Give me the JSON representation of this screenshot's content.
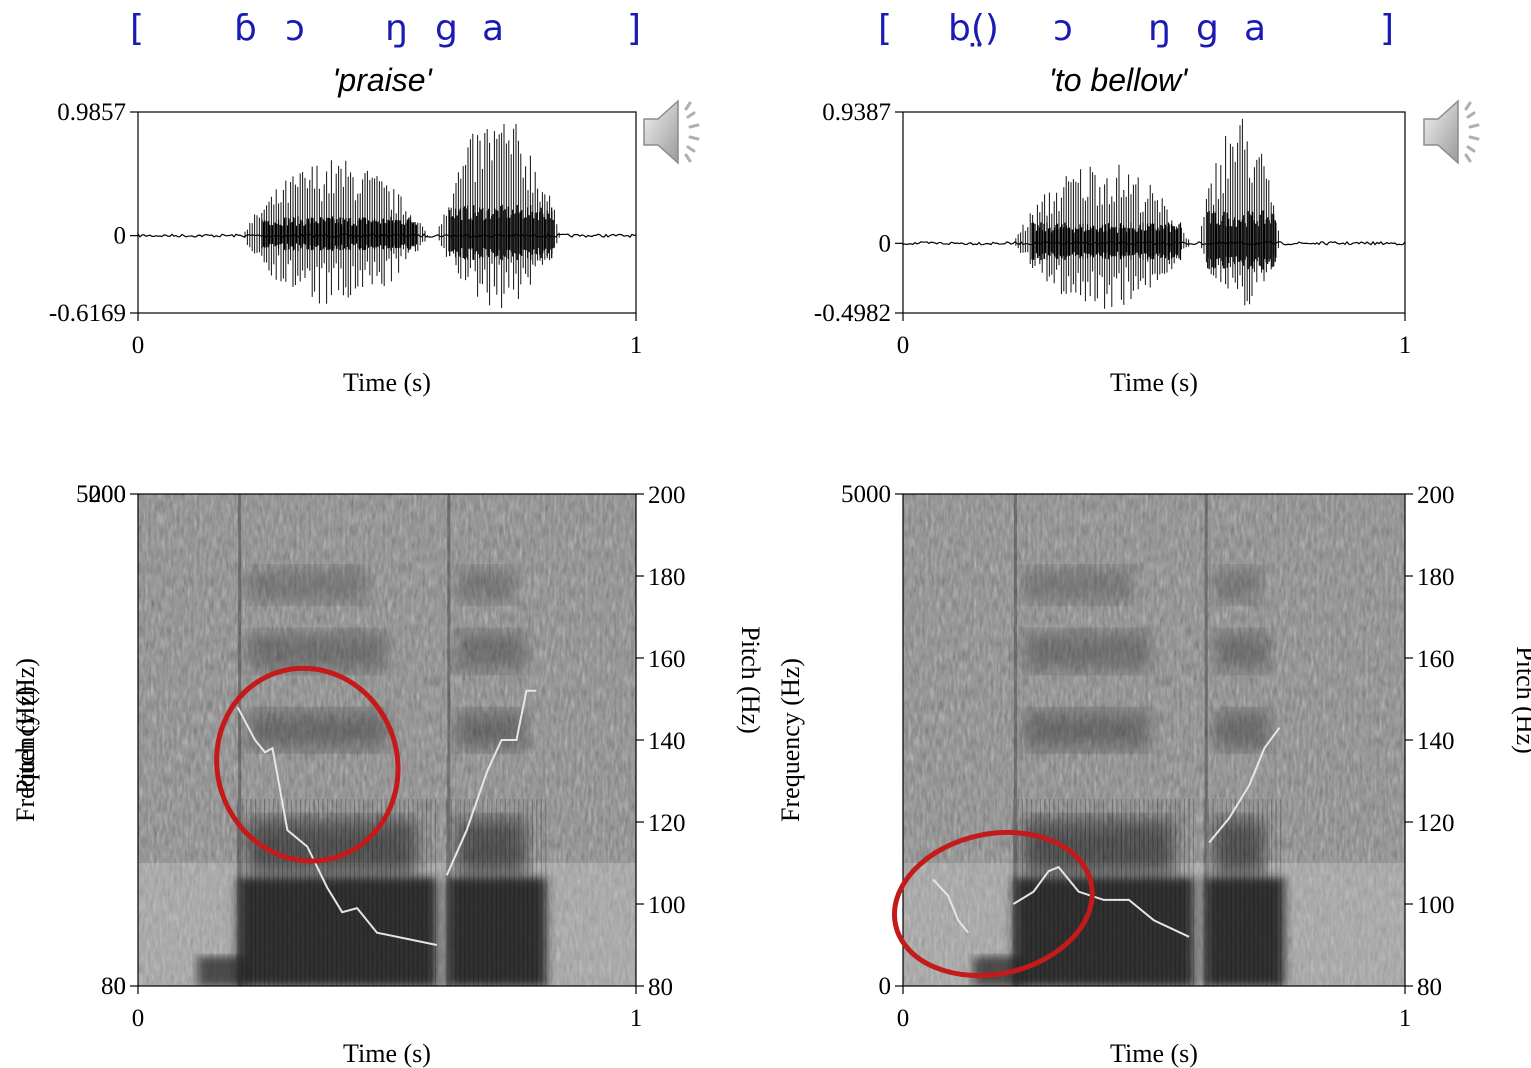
{
  "words": [
    {
      "transcription": [
        "[",
        "ɓ",
        "ɔ",
        "ŋ",
        "g",
        "a",
        "]"
      ],
      "gloss": "'praise'"
    },
    {
      "transcription": [
        "[",
        "b(̤)",
        "ɔ",
        "ŋ",
        "g",
        "a",
        "]"
      ],
      "gloss": "'to bellow'"
    }
  ],
  "speaker_icon": "speaker-volume-icon",
  "colors": {
    "transcription": "#1a1ab4",
    "circle": "#c41a1a",
    "pitch_line": "#e6e6e6"
  },
  "chart_data": [
    {
      "type": "waveform",
      "word": "'praise'",
      "xlabel": "Time (s)",
      "xlim": [
        0,
        1
      ],
      "x_ticks": [
        "0",
        "1"
      ],
      "ylim": [
        -0.6169,
        0.9857
      ],
      "y_ticks": [
        "0.9857",
        "0",
        "-0.6169"
      ],
      "voiced_segments": [
        {
          "start": 0.21,
          "end": 0.6,
          "peak": 0.62
        },
        {
          "start": 0.6,
          "end": 0.86,
          "peak": 0.98
        }
      ]
    },
    {
      "type": "waveform",
      "word": "'to bellow'",
      "xlabel": "Time (s)",
      "xlim": [
        0,
        1
      ],
      "x_ticks": [
        "0",
        "1"
      ],
      "ylim": [
        -0.4982,
        0.9387
      ],
      "y_ticks": [
        "0.9387",
        "0",
        "-0.4982"
      ],
      "voiced_segments": [
        {
          "start": 0.22,
          "end": 0.59,
          "peak": 0.6
        },
        {
          "start": 0.59,
          "end": 0.76,
          "peak": 0.94
        }
      ]
    },
    {
      "type": "heatmap",
      "word": "'praise'",
      "xlabel": "Time (s)",
      "ylabel": "Frequency (Hz)",
      "ylabel_right": "Pitch (Hz)",
      "xlim": [
        0,
        1
      ],
      "x_ticks": [
        "0",
        "1"
      ],
      "frequency_ylim": [
        0,
        5000
      ],
      "frequency_ticks": [
        "5000",
        "0"
      ],
      "pitch_ylim": [
        80,
        200
      ],
      "pitch_ticks": [
        "200",
        "180",
        "160",
        "140",
        "120",
        "100",
        "80"
      ],
      "pitch_track": [
        [
          [
            0.2,
            148
          ],
          [
            0.235,
            140
          ],
          [
            0.255,
            137
          ],
          [
            0.27,
            138
          ],
          [
            0.3,
            118
          ],
          [
            0.34,
            114
          ],
          [
            0.38,
            104
          ],
          [
            0.41,
            98
          ],
          [
            0.44,
            99
          ],
          [
            0.48,
            93
          ],
          [
            0.6,
            90
          ]
        ],
        [
          [
            0.62,
            107
          ],
          [
            0.66,
            118
          ],
          [
            0.7,
            132
          ],
          [
            0.73,
            140
          ],
          [
            0.76,
            140
          ],
          [
            0.78,
            152
          ],
          [
            0.8,
            152
          ]
        ]
      ],
      "highlight": {
        "time": 0.34,
        "pitch": 134,
        "label": "red circle"
      }
    },
    {
      "type": "heatmap",
      "word": "'to bellow'",
      "xlabel": "Time (s)",
      "ylabel": "Frequency (Hz)",
      "ylabel_right": "Pitch (Hz)",
      "xlim": [
        0,
        1
      ],
      "x_ticks": [
        "0",
        "1"
      ],
      "frequency_ylim": [
        0,
        5000
      ],
      "frequency_ticks": [
        "5000",
        "0"
      ],
      "pitch_ylim": [
        80,
        200
      ],
      "pitch_ticks": [
        "200",
        "180",
        "160",
        "140",
        "120",
        "100",
        "80"
      ],
      "pitch_track": [
        [
          [
            0.06,
            106
          ],
          [
            0.09,
            102
          ],
          [
            0.11,
            96
          ],
          [
            0.13,
            93
          ]
        ],
        [
          [
            0.22,
            100
          ],
          [
            0.26,
            103
          ],
          [
            0.29,
            108
          ],
          [
            0.31,
            109
          ],
          [
            0.35,
            103
          ],
          [
            0.4,
            101
          ],
          [
            0.45,
            101
          ],
          [
            0.5,
            96
          ],
          [
            0.57,
            92
          ]
        ],
        [
          [
            0.61,
            115
          ],
          [
            0.65,
            121
          ],
          [
            0.69,
            129
          ],
          [
            0.72,
            138
          ],
          [
            0.75,
            143
          ]
        ]
      ],
      "highlight": {
        "time": 0.18,
        "pitch": 100,
        "label": "red circle"
      }
    }
  ]
}
